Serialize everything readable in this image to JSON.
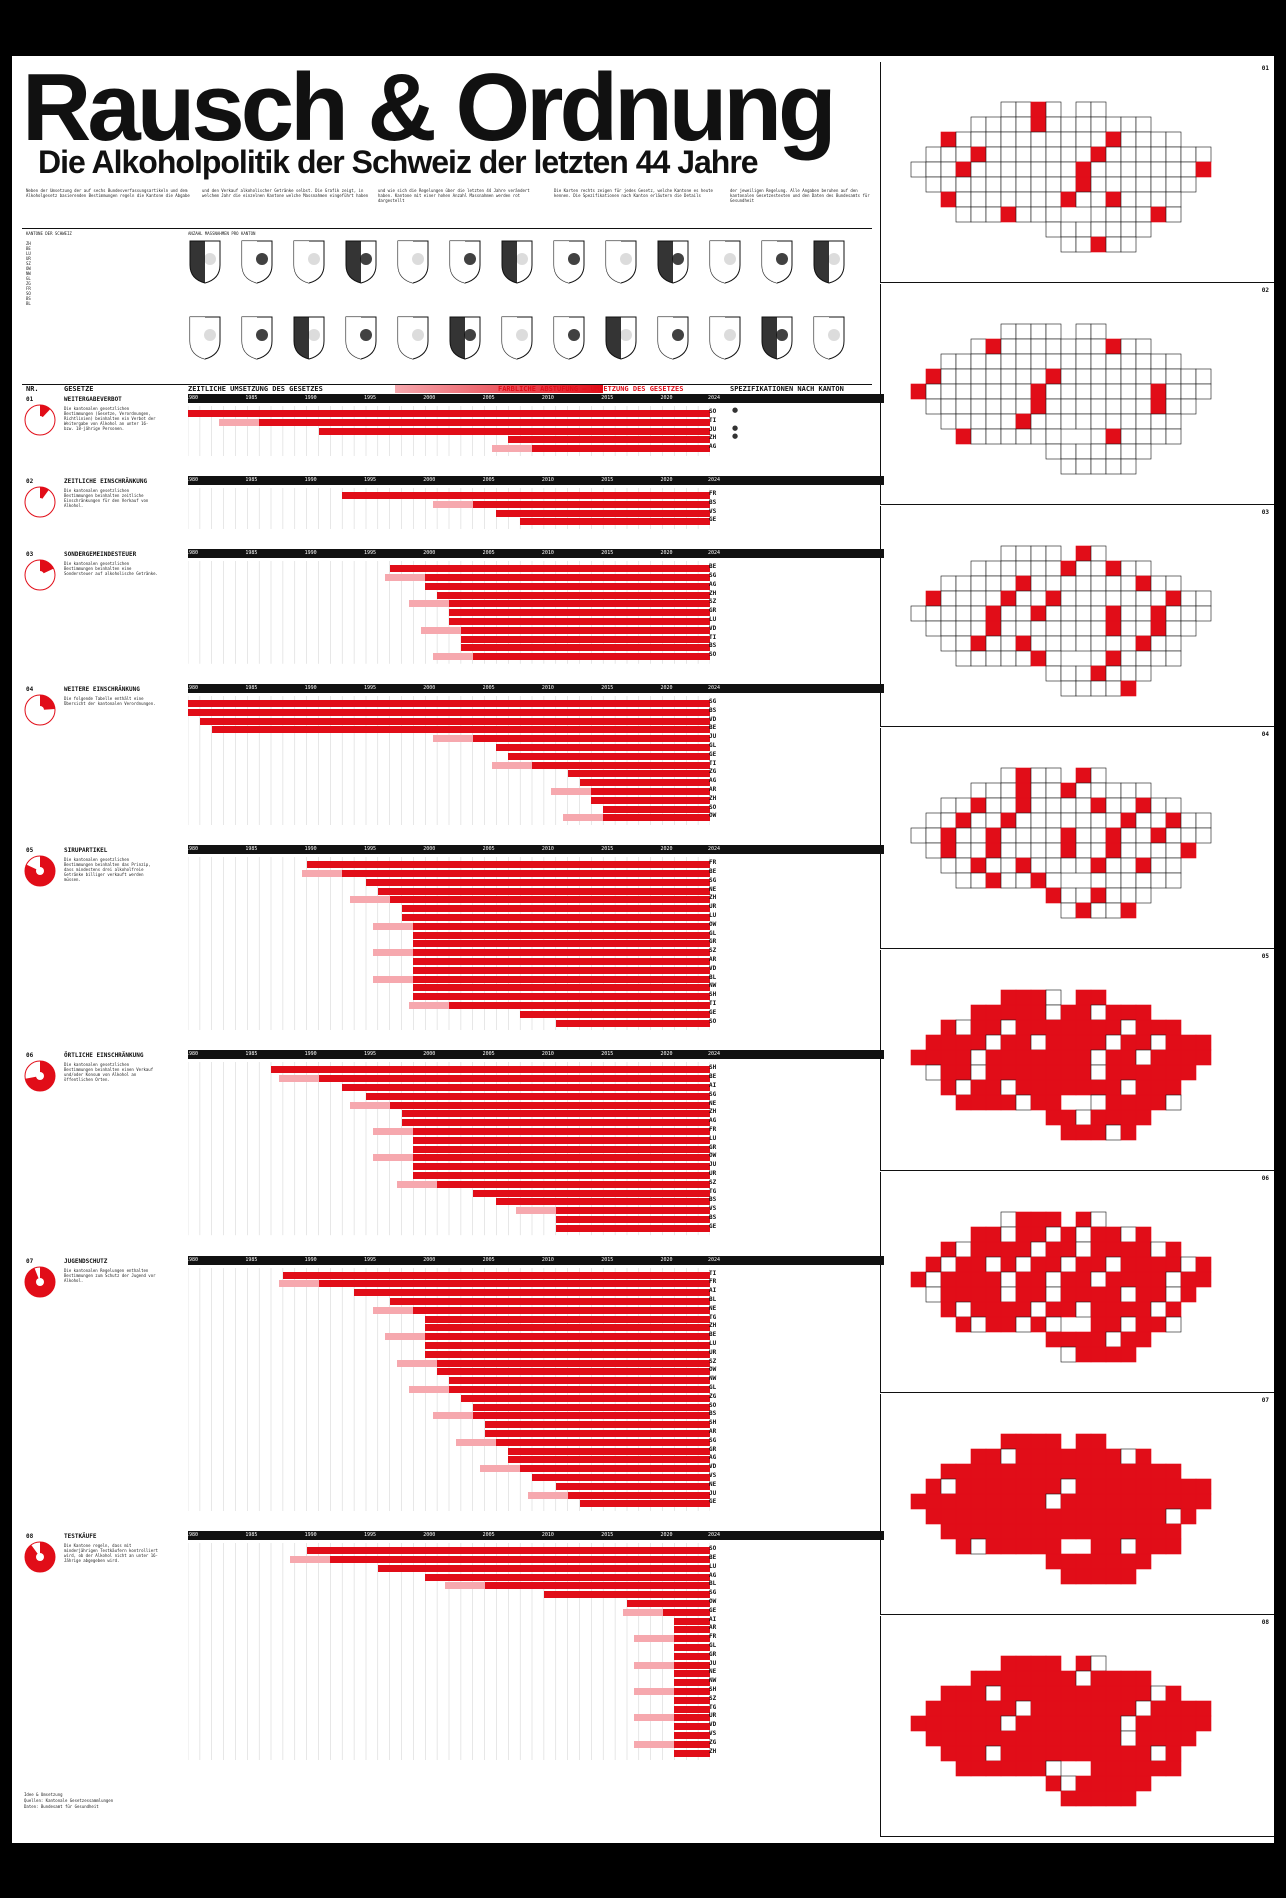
{
  "title": "Rausch & Ordnung",
  "subtitle": "Die Alkoholpolitik der Schweiz der letzten 44 Jahre",
  "intro": [
    "Neben der Umsetzung der auf sechs Bundesverfassungsartikeln und dem Alkoholgesetz basierenden Bestimmungen regeln die Kantone die Abgabe",
    "und den Verkauf alkoholischer Getränke selbst. Die Grafik zeigt, in welchem Jahr die einzelnen Kantone welche Massnahmen eingeführt haben",
    "und wie sich die Regelungen über die letzten 44 Jahre verändert haben. Kantone mit einer hohen Anzahl Massnahmen werden rot dargestellt",
    "Die Karten rechts zeigen für jedes Gesetz, welche Kantone es heute kennen. Die Spezifikationen nach Kanton erläutern die Details",
    "der jeweiligen Regelung. Alle Angaben beruhen auf den kantonalen Gesetzestexten und den Daten des Bundesamts für Gesundheit"
  ],
  "legend_left": "KANTONE DER SCHWEIZ",
  "legend_right": "ANZAHL MASSNAHMEN PRO KANTON",
  "headers": {
    "nr": "NR.",
    "gesetze": "GESETZE",
    "zeitliche": "ZEITLICHE UMSETZUNG DES GESETZES",
    "legend": "FARBLICHE ABSTUFUNG – UMSETZUNG DES GESETZES",
    "spez": "SPEZIFIKATIONEN NACH KANTON"
  },
  "years": [
    "1980",
    "1985",
    "1990",
    "1995",
    "2000",
    "2005",
    "2010",
    "2015",
    "2020",
    "2024"
  ],
  "sections": [
    {
      "num": "01",
      "title": "WEITERGABEVERBOT",
      "desc": "Die kantonalen gesetzlichen Bestimmungen (Gesetze, Verordnungen, Richtlinien) beinhalten ein Verbot der Weitergabe von Alkohol an unter 16- bzw. 18-jährige Personen.",
      "pie": 0.12,
      "cantons": [
        "SO",
        "TI",
        "JU",
        "ZH",
        "AG"
      ],
      "starts": [
        1980,
        1986,
        1991,
        2007,
        2009
      ],
      "markers": [
        "●",
        "",
        "●",
        "●",
        ""
      ]
    },
    {
      "num": "02",
      "title": "ZEITLICHE EINSCHRÄNKUNG",
      "desc": "Die kantonalen gesetzlichen Bestimmungen beinhalten zeitliche Einschränkungen für den Verkauf von Alkohol.",
      "pie": 0.1,
      "cantons": [
        "FR",
        "BS",
        "VS",
        "GE"
      ],
      "starts": [
        1993,
        2004,
        2006,
        2008
      ],
      "markers": [
        "",
        "",
        "",
        ""
      ]
    },
    {
      "num": "03",
      "title": "SONDERGEMEINDESTEUER",
      "desc": "Die kantonalen gesetzlichen Bestimmungen beinhalten eine Sondersteuer auf alkoholische Getränke.",
      "pie": 0.18,
      "cantons": [
        "BE",
        "SG",
        "AG",
        "ZH",
        "SZ",
        "GR",
        "LU",
        "VD",
        "TI",
        "BS",
        "SO"
      ],
      "starts": [
        1997,
        2000,
        2000,
        2001,
        2002,
        2002,
        2002,
        2003,
        2003,
        2003,
        2004
      ],
      "markers": []
    },
    {
      "num": "04",
      "title": "WEITERE EINSCHRÄNKUNG",
      "desc": "Die folgende Tabelle enthält eine Übersicht der kantonalen Verordnungen.",
      "pie": 0.24,
      "cantons": [
        "SG",
        "BS",
        "VD",
        "BE",
        "JU",
        "GL",
        "GE",
        "TI",
        "ZG",
        "AG",
        "AR",
        "ZH",
        "SO",
        "OW"
      ],
      "starts": [
        1980,
        1980,
        1981,
        1982,
        2004,
        2006,
        2007,
        2009,
        2012,
        2013,
        2014,
        2014,
        2015,
        2015
      ],
      "markers": []
    },
    {
      "num": "05",
      "title": "SIRUPARTIKEL",
      "desc": "Die kantonalen gesetzlichen Bestimmungen beinhalten das Prinzip, dass mindestens drei alkoholfreie Getränke billiger verkauft werden müssen.",
      "pie": 0.82,
      "cantons": [
        "FR",
        "BE",
        "SG",
        "NE",
        "ZH",
        "UR",
        "LU",
        "OW",
        "GL",
        "GR",
        "SZ",
        "AR",
        "VD",
        "BL",
        "NW",
        "SH",
        "TI",
        "GE",
        "SO"
      ],
      "starts": [
        1990,
        1993,
        1995,
        1996,
        1997,
        1998,
        1998,
        1999,
        1999,
        1999,
        1999,
        1999,
        1999,
        1999,
        1999,
        1999,
        2002,
        2008,
        2011
      ],
      "markers": []
    },
    {
      "num": "06",
      "title": "ÖRTLICHE EINSCHRÄNKUNG",
      "desc": "Die kantonalen gesetzlichen Bestimmungen beinhalten einen Verkauf und/oder Konsum von Alkohol an öffentlichen Orten.",
      "pie": 0.72,
      "cantons": [
        "SH",
        "BE",
        "AI",
        "SG",
        "NE",
        "ZH",
        "AG",
        "FR",
        "LU",
        "GR",
        "OW",
        "JU",
        "UR",
        "SZ",
        "TG",
        "BS",
        "VS",
        "BS",
        "GE"
      ],
      "starts": [
        1987,
        1991,
        1993,
        1995,
        1997,
        1998,
        1998,
        1999,
        1999,
        1999,
        1999,
        1999,
        1999,
        2001,
        2004,
        2006,
        2011,
        2011,
        2011
      ],
      "markers": []
    },
    {
      "num": "07",
      "title": "JUGENDSCHUTZ",
      "desc": "Die kantonalen Regelungen enthalten Bestimmungen zum Schutz der Jugend vor Alkohol.",
      "pie": 0.94,
      "cantons": [
        "TI",
        "FR",
        "AI",
        "BL",
        "NE",
        "TG",
        "ZH",
        "BE",
        "LU",
        "UR",
        "SZ",
        "OW",
        "NW",
        "GL",
        "ZG",
        "SO",
        "BS",
        "SH",
        "AR",
        "SG",
        "GR",
        "AG",
        "VD",
        "VS",
        "NE",
        "JU",
        "GE"
      ],
      "starts": [
        1988,
        1991,
        1994,
        1997,
        1999,
        2000,
        2000,
        2000,
        2000,
        2000,
        2001,
        2001,
        2002,
        2002,
        2003,
        2004,
        2004,
        2005,
        2005,
        2006,
        2007,
        2007,
        2008,
        2009,
        2011,
        2012,
        2013
      ],
      "markers": []
    },
    {
      "num": "08",
      "title": "TESTKÄUFE",
      "desc": "Die Kantone regeln, dass mit minderjährigen Testkäufern kontrolliert wird, ob der Alkohol nicht an unter 16-Jährige abgegeben wird.",
      "pie": 0.9,
      "cantons": [
        "SO",
        "BE",
        "LU",
        "AG",
        "BL",
        "SG",
        "OW",
        "GE",
        "AI",
        "AR",
        "FR",
        "GL",
        "GR",
        "JU",
        "NE",
        "NW",
        "SH",
        "SZ",
        "TG",
        "UR",
        "VD",
        "VS",
        "ZG",
        "ZH"
      ],
      "starts": [
        1990,
        1992,
        1996,
        2000,
        2005,
        2010,
        2017,
        2020,
        2021,
        2021,
        2021,
        2021,
        2021,
        2021,
        2021,
        2021,
        2021,
        2021,
        2021,
        2021,
        2021,
        2021,
        2021,
        2021
      ],
      "markers": []
    }
  ],
  "maps": [
    "01",
    "02",
    "03",
    "04",
    "05",
    "06",
    "07",
    "08"
  ],
  "credits": [
    "Idee & Umsetzung",
    "Quellen: Kantonale Gesetzessammlungen",
    "Daten: Bundesamt für Gesundheit"
  ],
  "colors": {
    "accent": "#e10d18",
    "light": "#f6a8ae",
    "ink": "#111111"
  }
}
